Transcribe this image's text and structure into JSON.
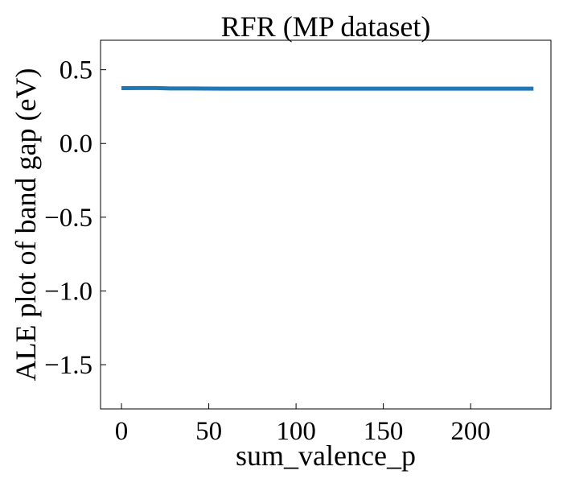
{
  "chart_data": {
    "type": "line",
    "title": "RFR (MP dataset)",
    "xlabel": "sum_valence_p",
    "ylabel": "ALE plot of band gap (eV)",
    "xlim": [
      -12,
      246
    ],
    "ylim": [
      -1.8,
      0.7
    ],
    "xticks": [
      0,
      50,
      100,
      150,
      200
    ],
    "xtick_labels": [
      "0",
      "50",
      "100",
      "150",
      "200"
    ],
    "yticks": [
      0.5,
      0.0,
      -0.5,
      -1.0,
      -1.5
    ],
    "ytick_labels": [
      "0.5",
      "0.0",
      "−0.5",
      "−1.0",
      "−1.5"
    ],
    "grid": false,
    "series": [
      {
        "color": "#1f77b4",
        "x": [
          0,
          10,
          20,
          28,
          40,
          60,
          80,
          100,
          120,
          140,
          160,
          180,
          200,
          220,
          236
        ],
        "y": [
          0.375,
          0.376,
          0.376,
          0.373,
          0.373,
          0.372,
          0.372,
          0.372,
          0.372,
          0.372,
          0.372,
          0.372,
          0.372,
          0.372,
          0.372
        ]
      }
    ]
  }
}
